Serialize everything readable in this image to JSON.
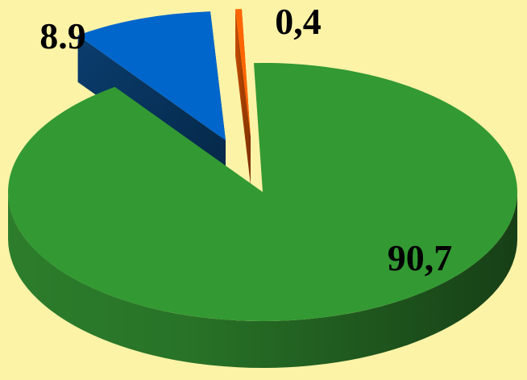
{
  "chart_data": {
    "type": "pie",
    "style": "3d-exploded",
    "legend": "none",
    "slices": [
      {
        "value": 90.7,
        "label": "90,7",
        "color": "#339933"
      },
      {
        "value": 8.9,
        "label": "8.9",
        "color": "#0066cc"
      },
      {
        "value": 0.4,
        "label": "0,4",
        "color": "#ff6600"
      }
    ]
  }
}
